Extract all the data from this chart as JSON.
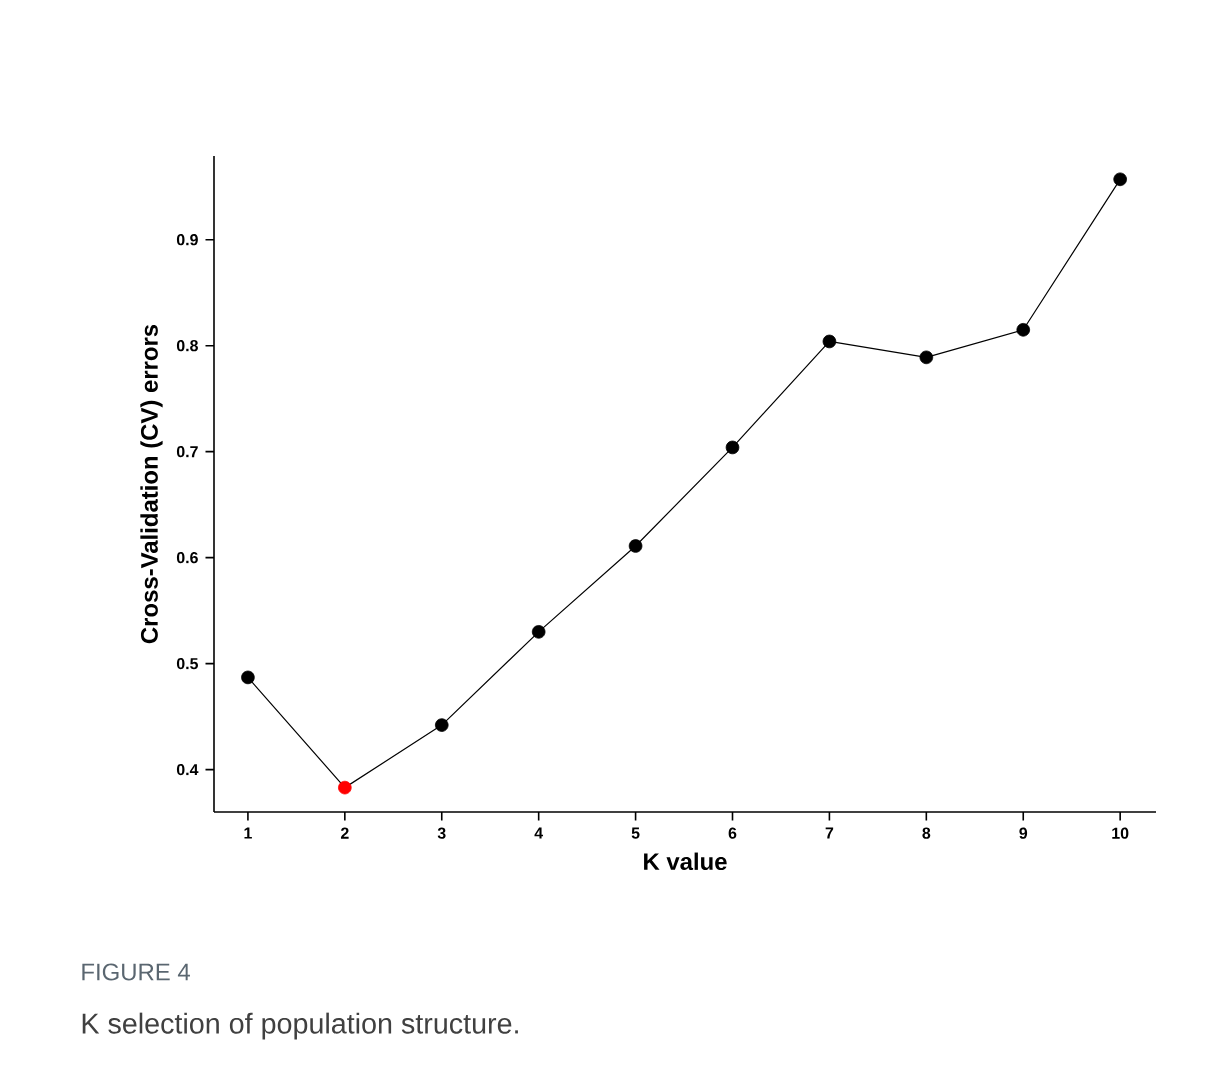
{
  "chart_data": {
    "type": "line",
    "xlabel": "K value",
    "ylabel": "Cross-Validation (CV) errors",
    "annotations": [
      "FIGURE 4",
      "K selection of population structure."
    ],
    "x": [
      1,
      2,
      3,
      4,
      5,
      6,
      7,
      8,
      9,
      10
    ],
    "series": [
      {
        "color": "#000000",
        "values": [
          0.487,
          0.383,
          0.442,
          0.53,
          0.611,
          0.704,
          0.804,
          0.789,
          0.815,
          0.957
        ],
        "colors": [
          "#000000",
          "#ff0000",
          "#000000",
          "#000000",
          "#000000",
          "#000000",
          "#000000",
          "#000000",
          "#000000",
          "#000000"
        ]
      }
    ],
    "xlim": [
      0.65,
      10.37
    ],
    "ylim": [
      0.36,
      0.979
    ],
    "xticks": [
      1,
      2,
      3,
      4,
      5,
      6,
      7,
      8,
      9,
      10
    ],
    "yticks": [
      0.4,
      0.5,
      0.6,
      0.7,
      0.8,
      0.9
    ],
    "marker": "circle",
    "line_style": "solid"
  }
}
